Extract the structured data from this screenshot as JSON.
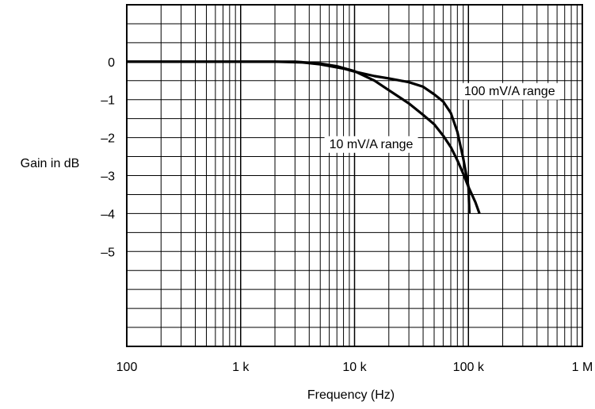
{
  "chart_data": {
    "type": "line",
    "title": "",
    "xlabel": "Frequency (Hz)",
    "ylabel": "Gain in dB",
    "x_scale": "log",
    "xlim": [
      100,
      1000000
    ],
    "ylim": [
      -7.5,
      1.5
    ],
    "grid": true,
    "x_ticks": [
      {
        "value": 100,
        "label": "100"
      },
      {
        "value": 1000,
        "label": "1 k"
      },
      {
        "value": 10000,
        "label": "10 k"
      },
      {
        "value": 100000,
        "label": "100 k"
      },
      {
        "value": 1000000,
        "label": "1 M"
      }
    ],
    "y_ticks": [
      {
        "value": 0,
        "label": "0"
      },
      {
        "value": -1,
        "label": "–1"
      },
      {
        "value": -2,
        "label": "–2"
      },
      {
        "value": -3,
        "label": "–3"
      },
      {
        "value": -4,
        "label": "–4"
      },
      {
        "value": -5,
        "label": "–5"
      }
    ],
    "series": [
      {
        "name": "100 mV/A range",
        "x": [
          100,
          1000,
          2000,
          3500,
          5000,
          8000,
          10000,
          15000,
          20000,
          30000,
          40000,
          50000,
          60000,
          70000,
          80000,
          90000,
          100000,
          102000
        ],
        "y": [
          0,
          0,
          0,
          -0.02,
          -0.07,
          -0.18,
          -0.26,
          -0.38,
          -0.44,
          -0.54,
          -0.66,
          -0.86,
          -1.05,
          -1.35,
          -1.85,
          -2.55,
          -3.3,
          -4.0
        ]
      },
      {
        "name": "10 mV/A range",
        "x": [
          100,
          1000,
          2000,
          3000,
          5000,
          7000,
          10000,
          15000,
          20000,
          30000,
          40000,
          50000,
          60000,
          70000,
          80000,
          90000,
          100000,
          115000,
          125000
        ],
        "y": [
          0,
          0,
          0,
          0,
          -0.05,
          -0.12,
          -0.25,
          -0.5,
          -0.75,
          -1.1,
          -1.4,
          -1.65,
          -1.95,
          -2.25,
          -2.6,
          -2.95,
          -3.3,
          -3.7,
          -4.0
        ]
      }
    ],
    "annotations": [
      {
        "text": "100 mV/A range",
        "x": 230000,
        "y": -0.75
      },
      {
        "text": "10 mV/A range",
        "x": 14000,
        "y": -2.15
      }
    ]
  }
}
